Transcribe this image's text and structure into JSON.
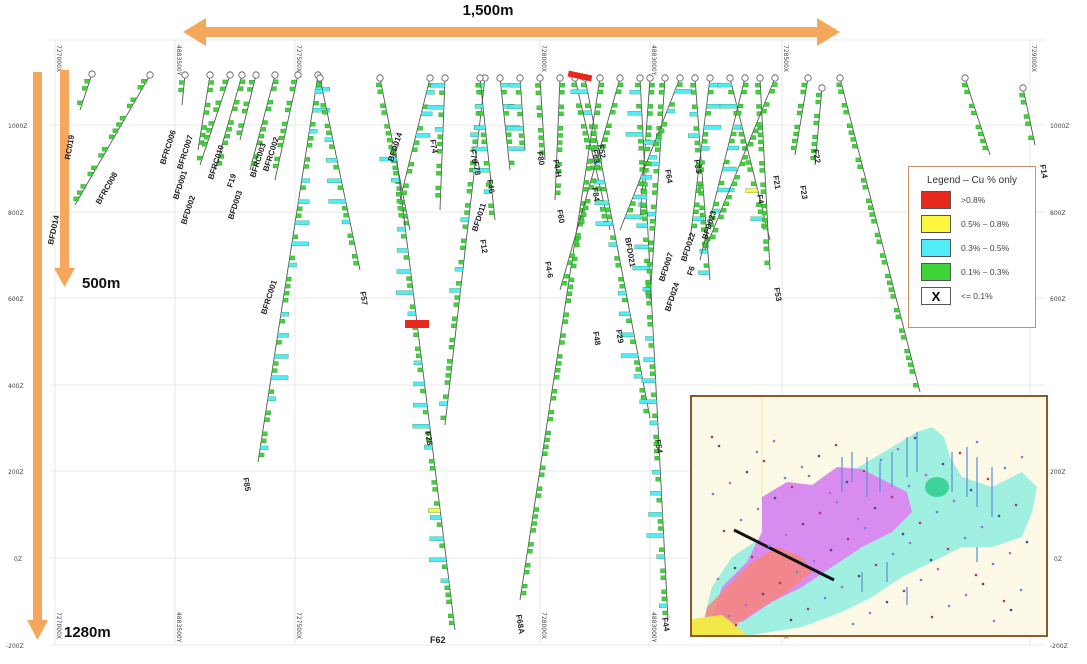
{
  "scale": {
    "horizontal": "1,500m",
    "vertical_mid": "500m",
    "vertical_full": "1280m"
  },
  "easting_labels": [
    "727000X",
    "4883500Y",
    "727500X",
    "728000X",
    "4883000Y",
    "728500X",
    "729000X"
  ],
  "rl_labels": [
    "1000Z",
    "800Z",
    "600Z",
    "400Z",
    "200Z",
    "0Z",
    "-200Z"
  ],
  "hole_labels": [
    "RC019",
    "BFRC008",
    "BFD014",
    "BFRC006",
    "BFD001",
    "BFRC007",
    "BFD002",
    "BFRC010",
    "F19",
    "BFD003",
    "BFRC003",
    "BFRC002",
    "BFRC001",
    "F57",
    "BFD014",
    "F74",
    "F78",
    "F76",
    "F46",
    "F12",
    "F4-6",
    "F80",
    "F4-H",
    "F63",
    "F52",
    "F64",
    "F33",
    "F85",
    "F21",
    "F23",
    "F22",
    "F14",
    "F53",
    "F84",
    "F62",
    "F28",
    "F68A",
    "F44",
    "F48",
    "F29",
    "BFD021",
    "BFD022",
    "BFD023",
    "F6",
    "F4",
    "F54",
    "F60",
    "BFD007",
    "BFD024",
    "BFD011"
  ],
  "bottom_labels": {
    "left": "F62",
    "mid": "F68A",
    "right": "F44"
  },
  "legend": {
    "title": "Legend – Cu % only",
    "items": [
      {
        "color": "#e8281c",
        "label": ">0.8%"
      },
      {
        "color": "#fdf53f",
        "label": "0.5% – 0.8%"
      },
      {
        "color": "#52ecf7",
        "label": "0.3% – 0.5%"
      },
      {
        "color": "#3fd33a",
        "label": "0.1% – 0.3%"
      },
      {
        "color": "#ffffff",
        "label": "<= 0.1%",
        "symbol": "X"
      }
    ]
  },
  "colors": {
    "arrow": "#f7a75c",
    "inset_border": "#8a5a2b",
    "legend_border": "#c8906a"
  }
}
